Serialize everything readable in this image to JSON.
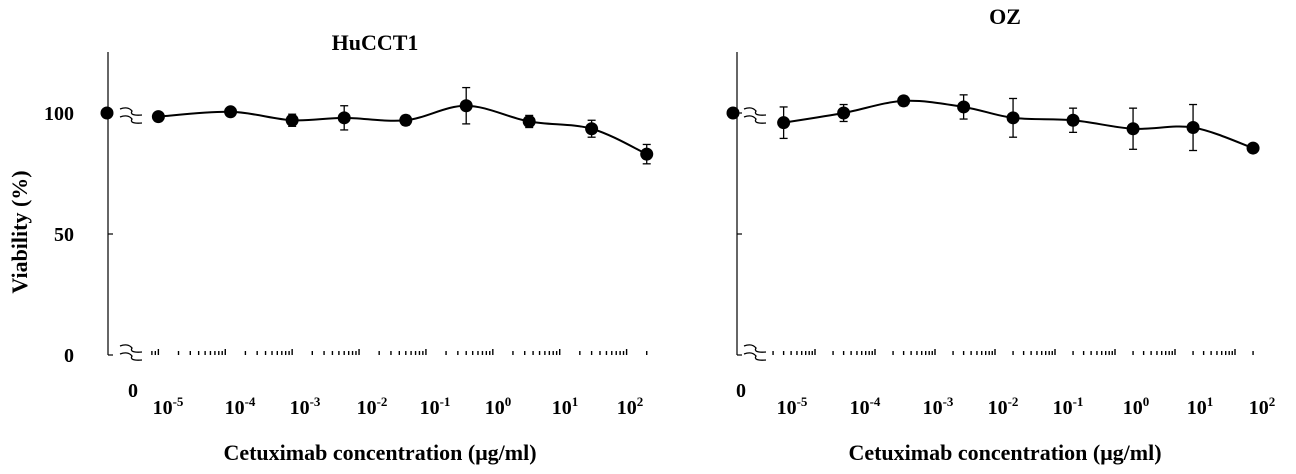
{
  "y_axis_label": "Viability (%)",
  "chart_data": [
    {
      "type": "line",
      "title": "HuCCT1",
      "xlabel": "Cetuximab concentration (μg/ml)",
      "ylabel": "Viability (%)",
      "x_scale": "log",
      "x_zero_label": "0",
      "x_tick_labels": [
        {
          "base": "10",
          "exp": "-5",
          "value": 1e-05
        },
        {
          "base": "10",
          "exp": "-4",
          "value": 0.0001
        },
        {
          "base": "10",
          "exp": "-3",
          "value": 0.001
        },
        {
          "base": "10",
          "exp": "-2",
          "value": 0.01
        },
        {
          "base": "10",
          "exp": "-1",
          "value": 0.1
        },
        {
          "base": "10",
          "exp": "0",
          "value": 1
        },
        {
          "base": "10",
          "exp": "1",
          "value": 10
        },
        {
          "base": "10",
          "exp": "2",
          "value": 100
        }
      ],
      "y_ticks": [
        0,
        50,
        100
      ],
      "ylim": [
        0,
        125
      ],
      "zero_point": {
        "x": 0,
        "y": 100
      },
      "series": [
        {
          "x": [
            1e-05,
            0.00012,
            0.001,
            0.006,
            0.05,
            0.4,
            3.5,
            30,
            200
          ],
          "y": [
            98.5,
            100.5,
            97,
            98,
            97,
            103,
            96.5,
            93.5,
            83
          ],
          "err": [
            1.5,
            1.5,
            2.5,
            5,
            2,
            7.5,
            2.5,
            3.5,
            4
          ]
        }
      ],
      "grid": false,
      "legend": "none"
    },
    {
      "type": "line",
      "title": "OZ",
      "xlabel": "Cetuximab concentration (μg/ml)",
      "ylabel": "",
      "x_scale": "log",
      "x_zero_label": "0",
      "x_tick_labels": [
        {
          "base": "10",
          "exp": "-5",
          "value": 1e-05
        },
        {
          "base": "10",
          "exp": "-4",
          "value": 0.0001
        },
        {
          "base": "10",
          "exp": "-3",
          "value": 0.001
        },
        {
          "base": "10",
          "exp": "-2",
          "value": 0.01
        },
        {
          "base": "10",
          "exp": "-1",
          "value": 0.1
        },
        {
          "base": "10",
          "exp": "0",
          "value": 1
        },
        {
          "base": "10",
          "exp": "1",
          "value": 10
        },
        {
          "base": "10",
          "exp": "2",
          "value": 100
        }
      ],
      "y_ticks": [
        0,
        50,
        100
      ],
      "ylim": [
        0,
        125
      ],
      "zero_point": {
        "x": 0,
        "y": 100
      },
      "series": [
        {
          "x": [
            3e-06,
            3e-05,
            0.0003,
            0.003,
            0.02,
            0.2,
            2,
            20,
            200
          ],
          "y": [
            96,
            100,
            105,
            102.5,
            98,
            97,
            93.5,
            94,
            85.5
          ],
          "err": [
            6.5,
            3.5,
            2,
            5,
            8,
            5,
            8.5,
            9.5,
            1
          ]
        }
      ],
      "grid": false,
      "legend": "none"
    }
  ]
}
